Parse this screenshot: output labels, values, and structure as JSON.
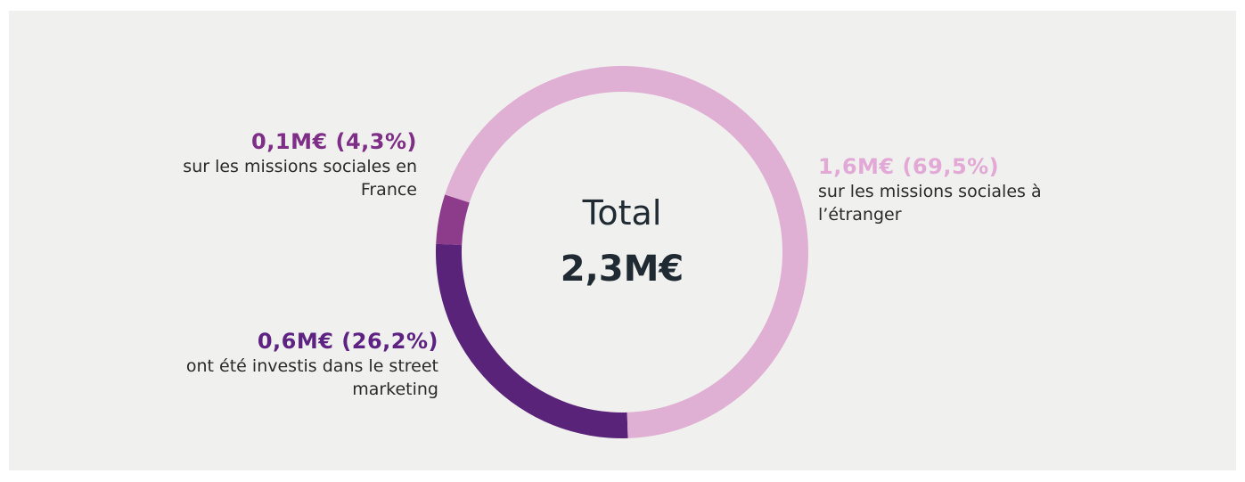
{
  "chart_data": {
    "type": "donut",
    "center_title": "Total",
    "center_total": "2,3M€",
    "categories": [
      "sur les missions sociales à l’étranger",
      "ont été investis dans le street marketing",
      "sur les missions sociales en France"
    ],
    "values": [
      69.5,
      26.2,
      4.3
    ],
    "value_labels": [
      "1,6M€ (69,5%)",
      "0,6M€ (26,2%)",
      "0,1M€ (4,3%)"
    ],
    "colors": [
      "#e0afd4",
      "#5a237a",
      "#8d3b8b"
    ],
    "label_colors": [
      "#e3a9d6",
      "#5e2382",
      "#7e2e86"
    ]
  }
}
